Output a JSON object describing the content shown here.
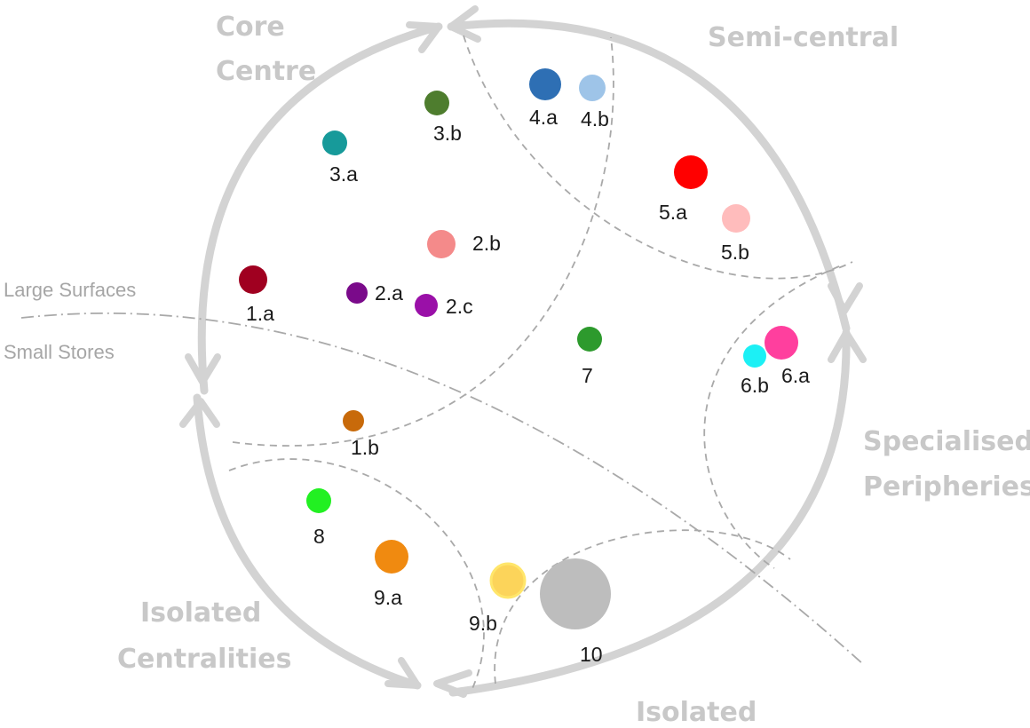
{
  "regions": {
    "core_centre_line1": "Core",
    "core_centre_line2": "Centre",
    "semi_central": "Semi-central",
    "specialised_line1": "Specialised",
    "specialised_line2": "Peripheries",
    "isolated_centralities_line1": "Isolated",
    "isolated_centralities_line2": "Centralities",
    "isolated": "Isolated"
  },
  "divider": {
    "large_surfaces": "Large Surfaces",
    "small_stores": "Small Stores"
  },
  "nodes": [
    {
      "id": "1.a",
      "label": "1.a",
      "color": "#a00020"
    },
    {
      "id": "1.b",
      "label": "1.b",
      "color": "#c86a0a"
    },
    {
      "id": "2.a",
      "label": "2.a",
      "color": "#7a0a8a"
    },
    {
      "id": "2.b",
      "label": "2.b",
      "color": "#f48a8a"
    },
    {
      "id": "2.c",
      "label": "2.c",
      "color": "#9a10a8"
    },
    {
      "id": "3.a",
      "label": "3.a",
      "color": "#179a9a"
    },
    {
      "id": "3.b",
      "label": "3.b",
      "color": "#4e7d2e"
    },
    {
      "id": "4.a",
      "label": "4.a",
      "color": "#2e6fb4"
    },
    {
      "id": "4.b",
      "label": "4.b",
      "color": "#9ec4e8"
    },
    {
      "id": "5.a",
      "label": "5.a",
      "color": "#ff0000"
    },
    {
      "id": "5.b",
      "label": "5.b",
      "color": "#ffbcbc"
    },
    {
      "id": "6.a",
      "label": "6.a",
      "color": "#ff3f9e"
    },
    {
      "id": "6.b",
      "label": "6.b",
      "color": "#1cf0f5"
    },
    {
      "id": "7",
      "label": "7",
      "color": "#2d9a2d"
    },
    {
      "id": "8",
      "label": "8",
      "color": "#22f022"
    },
    {
      "id": "9.a",
      "label": "9.a",
      "color": "#f08a10"
    },
    {
      "id": "9.b",
      "label": "9.b",
      "color": "#fcd45a"
    },
    {
      "id": "10",
      "label": "10",
      "color": "#bdbdbd"
    }
  ]
}
